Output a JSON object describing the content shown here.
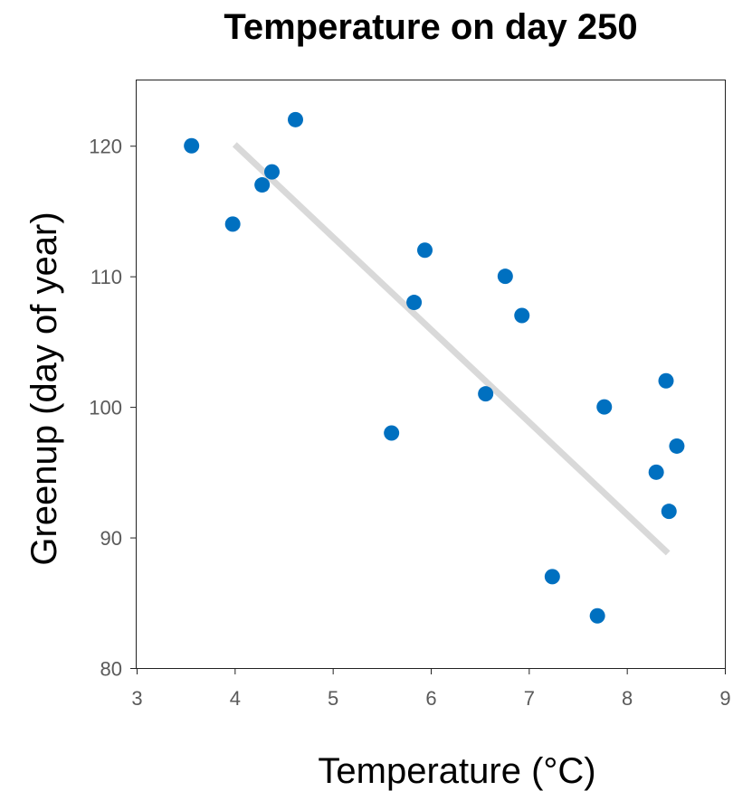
{
  "chart_data": {
    "type": "scatter",
    "title": "Temperature on day 250",
    "xlabel": "Temperature (°C)",
    "ylabel": "Greenup (day of year)",
    "xlim": [
      3,
      9
    ],
    "ylim": [
      80,
      125
    ],
    "xticks": [
      3,
      4,
      5,
      6,
      7,
      8,
      9
    ],
    "yticks": [
      80,
      90,
      100,
      110,
      120
    ],
    "grid": false,
    "series": [
      {
        "color": "#0070c0",
        "points": [
          {
            "x": 3.56,
            "y": 120
          },
          {
            "x": 3.98,
            "y": 114
          },
          {
            "x": 4.28,
            "y": 117
          },
          {
            "x": 4.38,
            "y": 118
          },
          {
            "x": 4.62,
            "y": 122
          },
          {
            "x": 5.6,
            "y": 98
          },
          {
            "x": 5.83,
            "y": 108
          },
          {
            "x": 5.94,
            "y": 112
          },
          {
            "x": 6.56,
            "y": 101
          },
          {
            "x": 6.76,
            "y": 110
          },
          {
            "x": 6.93,
            "y": 107
          },
          {
            "x": 7.24,
            "y": 87
          },
          {
            "x": 7.7,
            "y": 84
          },
          {
            "x": 7.77,
            "y": 100
          },
          {
            "x": 8.3,
            "y": 95
          },
          {
            "x": 8.4,
            "y": 102
          },
          {
            "x": 8.43,
            "y": 92
          },
          {
            "x": 8.51,
            "y": 97
          }
        ]
      }
    ],
    "trendline": {
      "color": "#d9d9d9",
      "x": [
        4.0,
        8.42
      ],
      "y": [
        120.1,
        88.8
      ]
    }
  }
}
